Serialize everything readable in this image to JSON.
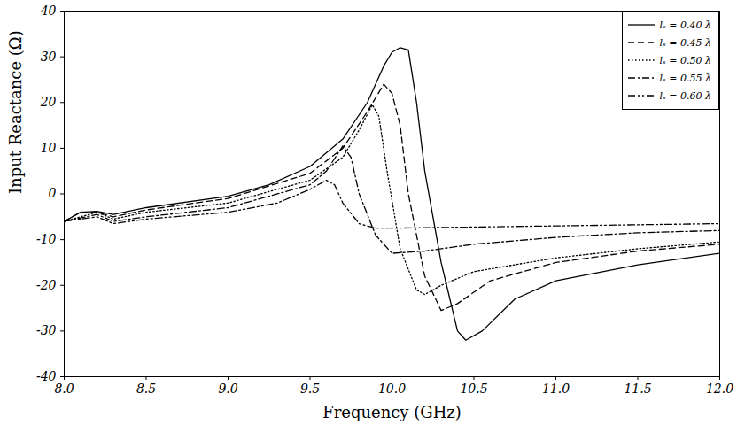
{
  "chart_data": {
    "type": "line",
    "x_label": "Frequency (GHz)",
    "y_label": "Input Reactance (Ω)",
    "xlim": [
      8,
      12
    ],
    "xticks": [
      {
        "value": 8,
        "label": "8.0"
      },
      {
        "value": 8.5,
        "label": "8.5"
      },
      {
        "value": 9,
        "label": "9.0"
      },
      {
        "value": 9.5,
        "label": "9.5"
      },
      {
        "value": 10,
        "label": "10.0"
      },
      {
        "value": 10.5,
        "label": "10.5"
      },
      {
        "value": 11,
        "label": "11.0"
      },
      {
        "value": 11.5,
        "label": "11.5"
      },
      {
        "value": 12,
        "label": "12.0"
      }
    ],
    "ylim": [
      -40,
      40
    ],
    "yticks": [
      -40,
      -30,
      -20,
      -10,
      0,
      10,
      20,
      30,
      40
    ],
    "grid": false,
    "legend": "top-right",
    "series": [
      {
        "name": "lₛ = 0.40 λ",
        "color": "#000000",
        "line_style": "solid",
        "x": [
          8.0,
          8.1,
          8.2,
          8.3,
          8.5,
          9.0,
          9.25,
          9.5,
          9.7,
          9.85,
          9.95,
          10.0,
          10.05,
          10.1,
          10.15,
          10.2,
          10.3,
          10.4,
          10.45,
          10.55,
          10.75,
          11.0,
          11.5,
          12.0
        ],
        "values": [
          -6,
          -4,
          -3.8,
          -4.5,
          -3,
          -0.5,
          2,
          6,
          12,
          20,
          28,
          31,
          32,
          31.5,
          20,
          5,
          -15,
          -30,
          -32,
          -30,
          -23,
          -19,
          -15.5,
          -13
        ]
      },
      {
        "name": "lₛ = 0.45 λ",
        "color": "#000000",
        "line_style": "dashed",
        "x": [
          8.0,
          8.1,
          8.2,
          8.3,
          8.5,
          9.0,
          9.5,
          9.7,
          9.85,
          9.95,
          10.0,
          10.05,
          10.1,
          10.2,
          10.3,
          10.4,
          10.6,
          11.0,
          11.5,
          12.0
        ],
        "values": [
          -6,
          -4,
          -4,
          -5,
          -3.5,
          -1,
          4.5,
          10,
          18,
          24,
          22,
          15,
          0,
          -18,
          -25.5,
          -24,
          -19,
          -15,
          -12.5,
          -11
        ]
      },
      {
        "name": "lₛ = 0.50 λ",
        "color": "#000000",
        "line_style": "dotted",
        "x": [
          8.0,
          8.2,
          8.3,
          8.5,
          9.0,
          9.5,
          9.7,
          9.8,
          9.88,
          9.92,
          9.97,
          10.05,
          10.15,
          10.2,
          10.3,
          10.5,
          11.0,
          11.5,
          12.0
        ],
        "values": [
          -6,
          -4,
          -5.5,
          -4,
          -2,
          3,
          8,
          14,
          19.5,
          17,
          5,
          -12,
          -21,
          -22,
          -20,
          -17,
          -14,
          -12,
          -10.5
        ]
      },
      {
        "name": "lₛ = 0.55 λ",
        "color": "#000000",
        "line_style": "dash-dot",
        "x": [
          8.0,
          8.2,
          8.3,
          8.5,
          9.0,
          9.5,
          9.6,
          9.7,
          9.75,
          9.8,
          9.9,
          10.0,
          10.2,
          10.5,
          11.0,
          11.5,
          12.0
        ],
        "values": [
          -6,
          -4.5,
          -6,
          -5,
          -3,
          2,
          5,
          10.5,
          8,
          0,
          -9,
          -13,
          -12.5,
          -11,
          -9.5,
          -8.5,
          -8
        ]
      },
      {
        "name": "lₛ = 0.60 λ",
        "color": "#000000",
        "line_style": "dash-dot-dot",
        "x": [
          8.0,
          8.2,
          8.3,
          8.5,
          9.0,
          9.3,
          9.5,
          9.6,
          9.65,
          9.7,
          9.8,
          9.9,
          10.0,
          11.0,
          12.0
        ],
        "values": [
          -6,
          -5,
          -6.5,
          -5.5,
          -4,
          -2,
          1,
          3,
          2,
          -2,
          -6.5,
          -7.5,
          -7.5,
          -7,
          -6.5
        ]
      }
    ]
  }
}
